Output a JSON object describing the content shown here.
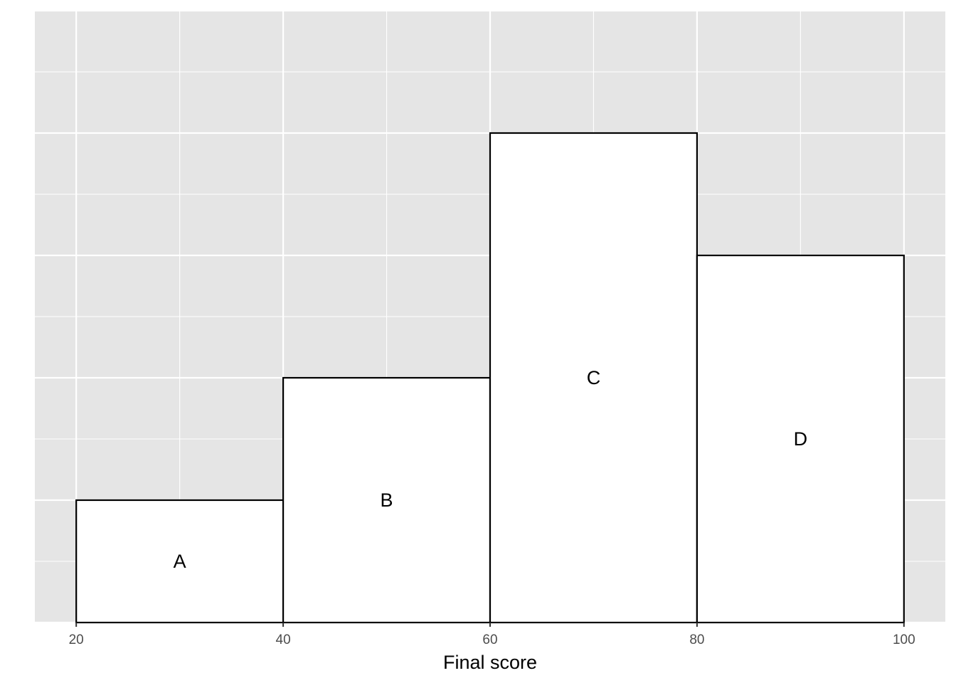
{
  "chart_data": {
    "type": "bar",
    "subtype": "histogram",
    "bins": [
      [
        20,
        40
      ],
      [
        40,
        60
      ],
      [
        60,
        80
      ],
      [
        80,
        100
      ]
    ],
    "categories": [
      "A",
      "B",
      "C",
      "D"
    ],
    "values": [
      1,
      2,
      4,
      3
    ],
    "bar_labels": [
      "A",
      "B",
      "C",
      "D"
    ],
    "xlabel": "Final score",
    "ylabel": "",
    "xticks": [
      "20",
      "40",
      "60",
      "80",
      "100"
    ],
    "xtick_values": [
      20,
      40,
      60,
      80,
      100
    ],
    "xlim": [
      16,
      104
    ],
    "ylim": [
      0,
      5
    ],
    "yticks_shown": false,
    "grid": true,
    "colors": {
      "panel": "#e5e5e5",
      "grid": "#ffffff",
      "bar_fill": "#ffffff",
      "bar_stroke": "#000000"
    }
  }
}
